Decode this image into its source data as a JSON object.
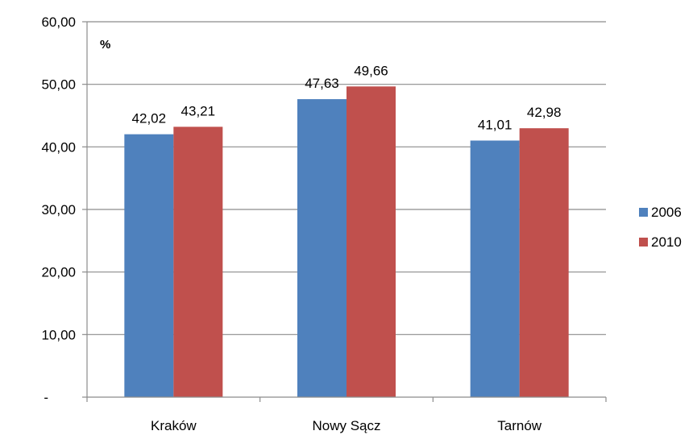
{
  "chart_data": {
    "type": "bar",
    "unit_label": "%",
    "categories": [
      "Kraków",
      "Nowy Sącz",
      "Tarnów"
    ],
    "series": [
      {
        "name": "2006",
        "color": "#4f81bd",
        "values": [
          42.02,
          47.63,
          41.01
        ],
        "labels": [
          "42,02",
          "47,63",
          "41,01"
        ]
      },
      {
        "name": "2010",
        "color": "#c0504d",
        "values": [
          43.21,
          49.66,
          42.98
        ],
        "labels": [
          "43,21",
          "49,66",
          "42,98"
        ]
      }
    ],
    "ylim": [
      0,
      60
    ],
    "yticks": [
      {
        "value": 0,
        "label": "-"
      },
      {
        "value": 10,
        "label": "10,00"
      },
      {
        "value": 20,
        "label": "20,00"
      },
      {
        "value": 30,
        "label": "30,00"
      },
      {
        "value": 40,
        "label": "40,00"
      },
      {
        "value": 50,
        "label": "50,00"
      },
      {
        "value": 60,
        "label": "60,00"
      }
    ],
    "grid": true,
    "legend_position": "right",
    "colors": {
      "grid": "#8c8c8c",
      "axis": "#8c8c8c",
      "text": "#000000"
    }
  }
}
